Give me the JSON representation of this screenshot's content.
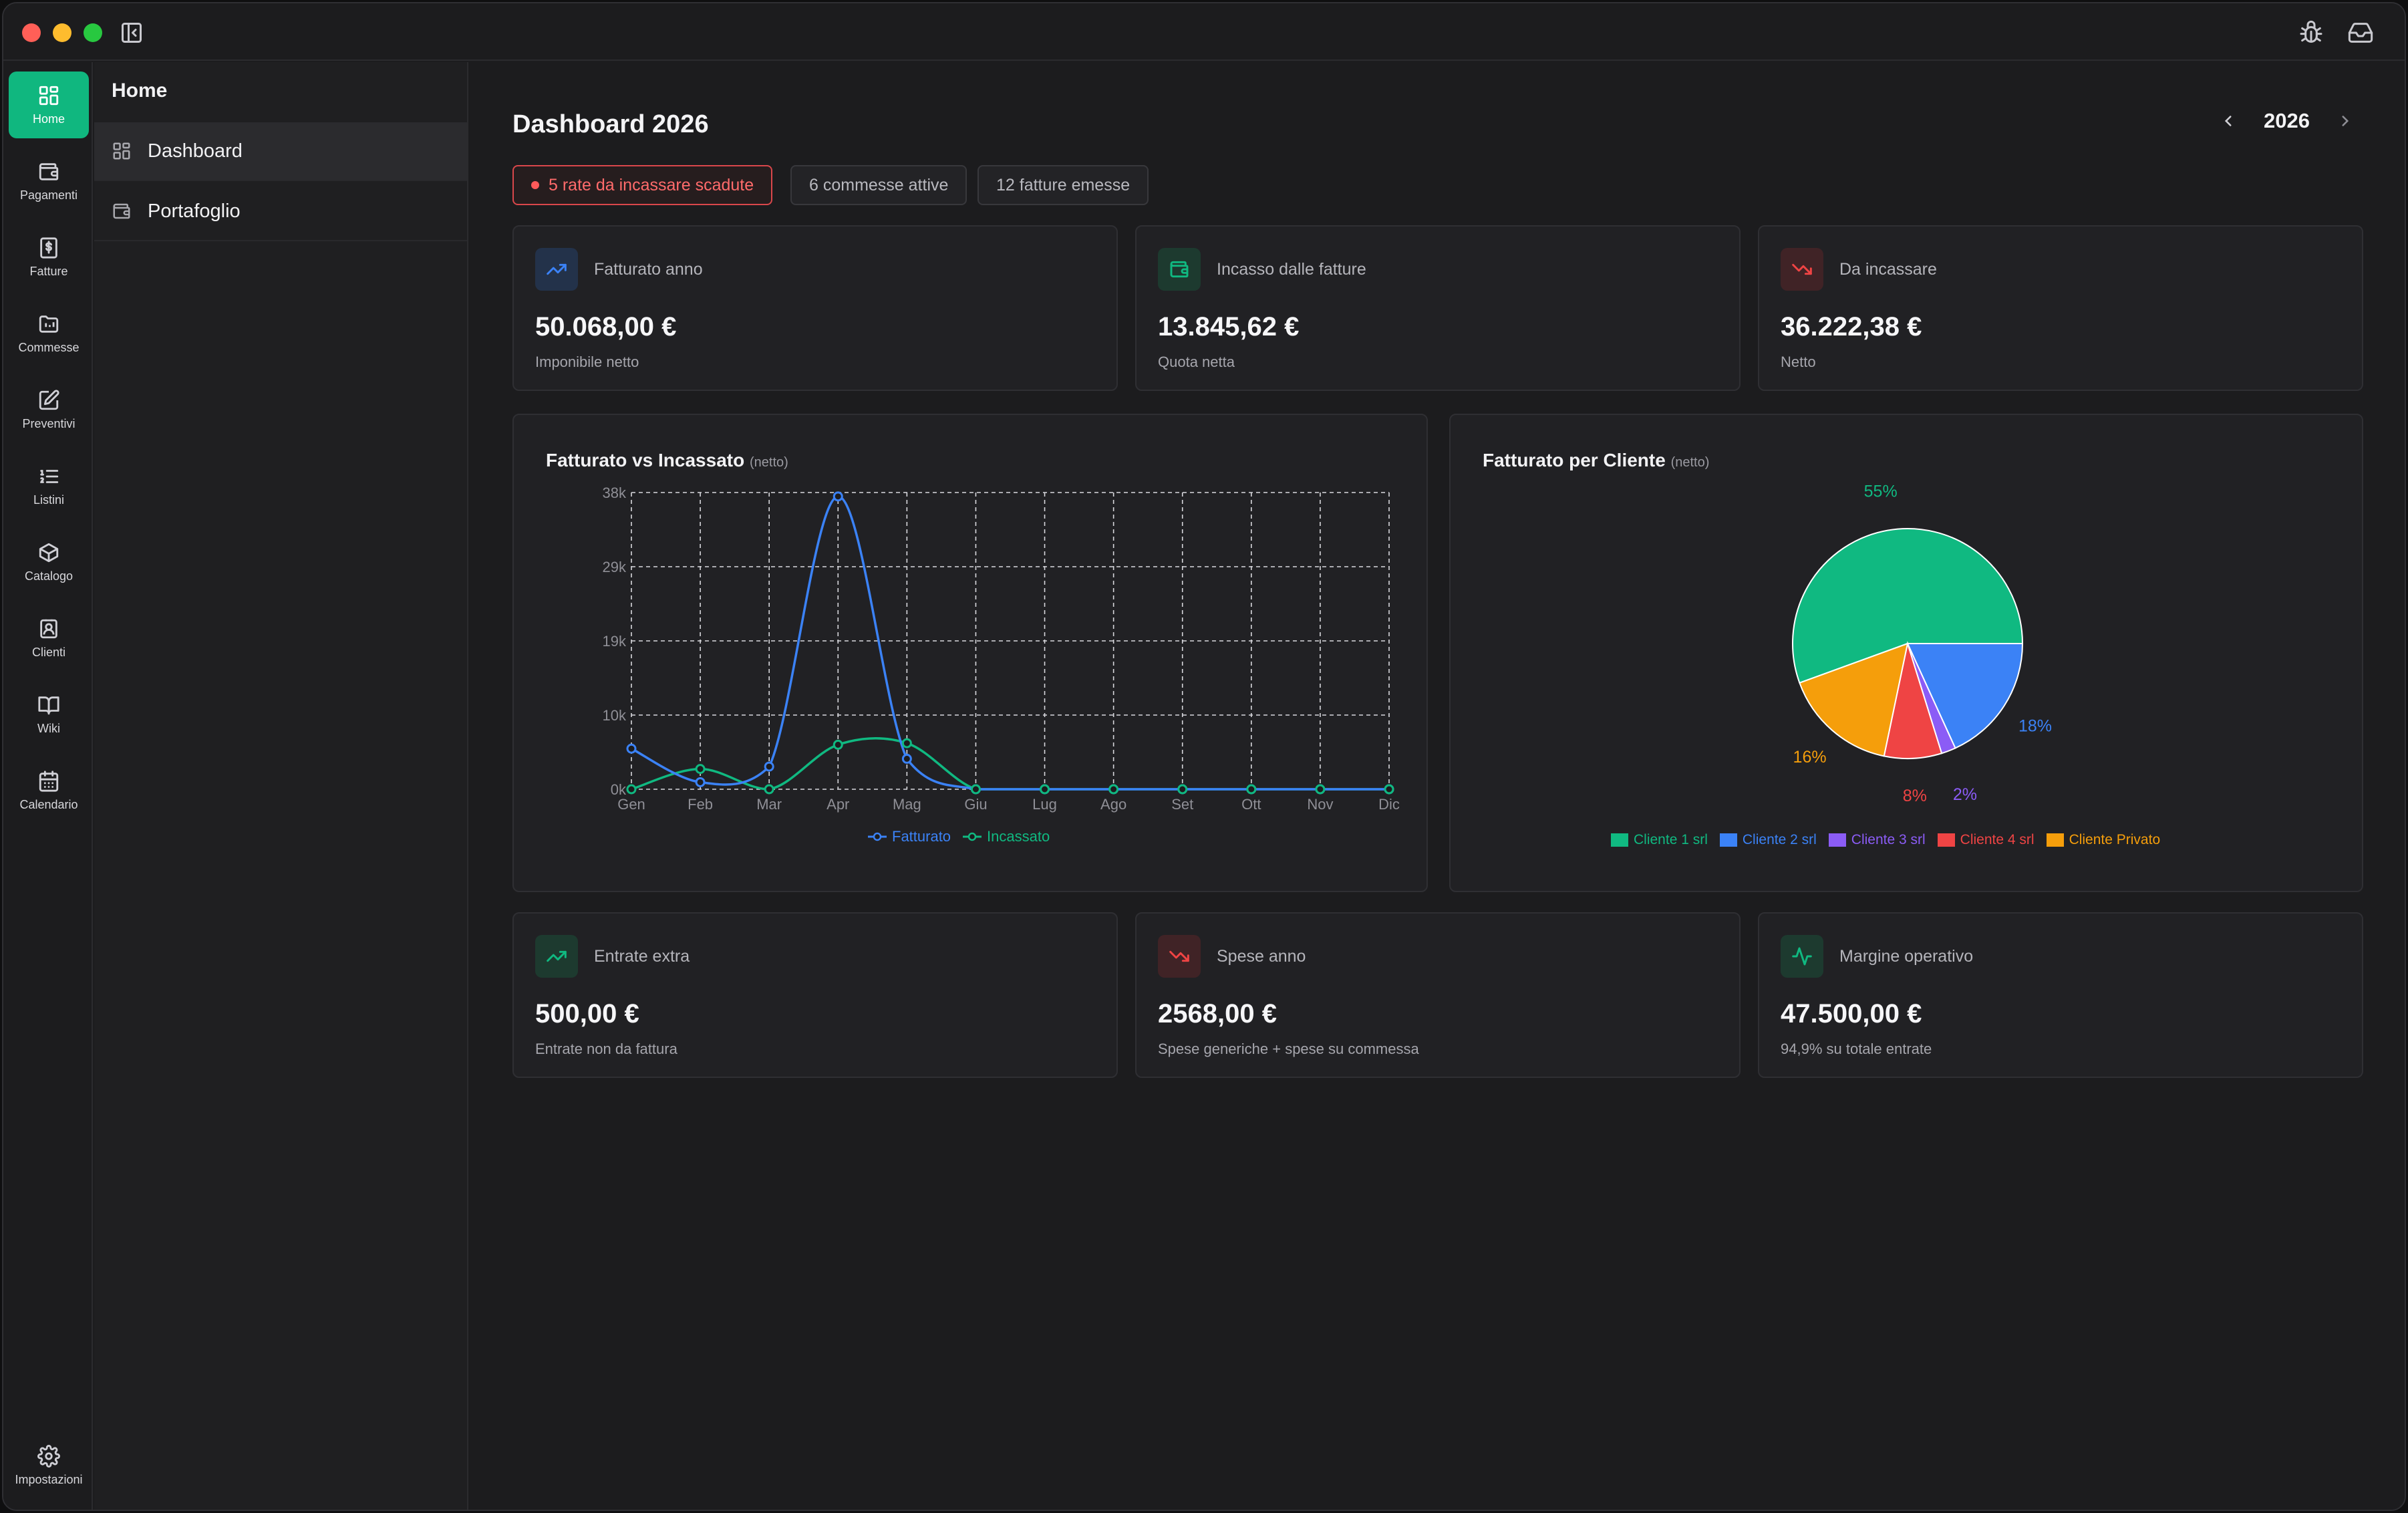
{
  "window": {
    "toolbar_icons": [
      "sidebar-toggle-icon",
      "bug-icon",
      "inbox-icon"
    ]
  },
  "rail": {
    "items": [
      {
        "label": "Home",
        "icon": "grid-icon",
        "active": true
      },
      {
        "label": "Pagamenti",
        "icon": "wallet-icon"
      },
      {
        "label": "Fatture",
        "icon": "invoice-icon"
      },
      {
        "label": "Commesse",
        "icon": "folder-chart-icon"
      },
      {
        "label": "Preventivi",
        "icon": "edit-document-icon"
      },
      {
        "label": "Listini",
        "icon": "list-icon"
      },
      {
        "label": "Catalogo",
        "icon": "package-icon"
      },
      {
        "label": "Clienti",
        "icon": "contact-icon"
      },
      {
        "label": "Wiki",
        "icon": "book-icon"
      },
      {
        "label": "Calendario",
        "icon": "calendar-icon"
      }
    ],
    "settings_label": "Impostazioni"
  },
  "subnav": {
    "title": "Home",
    "items": [
      {
        "label": "Dashboard",
        "icon": "grid-icon",
        "active": true
      },
      {
        "label": "Portafoglio",
        "icon": "wallet-icon"
      }
    ]
  },
  "main": {
    "title": "Dashboard 2026",
    "year": "2026",
    "pills": [
      {
        "label": "5 rate da incassare scadute",
        "alert": true
      },
      {
        "label": "6 commesse attive"
      },
      {
        "label": "12 fatture emesse"
      }
    ]
  },
  "kpis_top": [
    {
      "label": "Fatturato anno",
      "value": "50.068,00 €",
      "sub": "Imponibile netto",
      "icon": "trend-up-icon",
      "color": "#3b82f6"
    },
    {
      "label": "Incasso dalle fatture",
      "value": "13.845,62 €",
      "sub": "Quota netta",
      "icon": "wallet-icon",
      "color": "#10b981"
    },
    {
      "label": "Da incassare",
      "value": "36.222,38 €",
      "sub": "Netto",
      "icon": "trend-down-icon",
      "color": "#ef4444"
    }
  ],
  "kpis_bottom": [
    {
      "label": "Entrate extra",
      "value": "500,00 €",
      "sub": "Entrate non da fattura",
      "icon": "trend-up-icon",
      "color": "#10b981"
    },
    {
      "label": "Spese anno",
      "value": "2568,00 €",
      "sub": "Spese generiche + spese su commessa",
      "icon": "trend-down-icon",
      "color": "#ef4444"
    },
    {
      "label": "Margine operativo",
      "value": "47.500,00 €",
      "sub": "94,9% su totale entrate",
      "icon": "activity-icon",
      "color": "#10b981"
    }
  ],
  "line_chart": {
    "title": "Fatturato vs Incassato",
    "title_note": "(netto)"
  },
  "pie_chart": {
    "title": "Fatturato per Cliente",
    "title_note": "(netto)"
  },
  "chart_data": [
    {
      "type": "line",
      "categories": [
        "Gen",
        "Feb",
        "Mar",
        "Apr",
        "Mag",
        "Giu",
        "Lug",
        "Ago",
        "Set",
        "Ott",
        "Nov",
        "Dic"
      ],
      "y_ticks": [
        "0k",
        "10k",
        "19k",
        "29k",
        "38k"
      ],
      "ylim": [
        0,
        38000
      ],
      "grid": true,
      "legend_position": "bottom",
      "series": [
        {
          "name": "Fatturato",
          "color": "#3b82f6",
          "values": [
            5200,
            900,
            2900,
            37500,
            3900,
            0,
            0,
            0,
            0,
            0,
            0,
            0
          ]
        },
        {
          "name": "Incassato",
          "color": "#10b981",
          "values": [
            0,
            2600,
            0,
            5700,
            5900,
            0,
            0,
            0,
            0,
            0,
            0,
            0
          ]
        }
      ]
    },
    {
      "type": "pie",
      "legend_position": "bottom",
      "slices": [
        {
          "name": "Cliente 1 srl",
          "value": 55,
          "label": "55%",
          "color": "#10b981"
        },
        {
          "name": "Cliente 2 srl",
          "value": 18,
          "label": "18%",
          "color": "#3b82f6"
        },
        {
          "name": "Cliente 3 srl",
          "value": 2,
          "label": "2%",
          "color": "#8b5cf6"
        },
        {
          "name": "Cliente 4 srl",
          "value": 8,
          "label": "8%",
          "color": "#ef4444"
        },
        {
          "name": "Cliente Privato",
          "value": 16,
          "label": "16%",
          "color": "#f59e0b"
        }
      ]
    }
  ]
}
